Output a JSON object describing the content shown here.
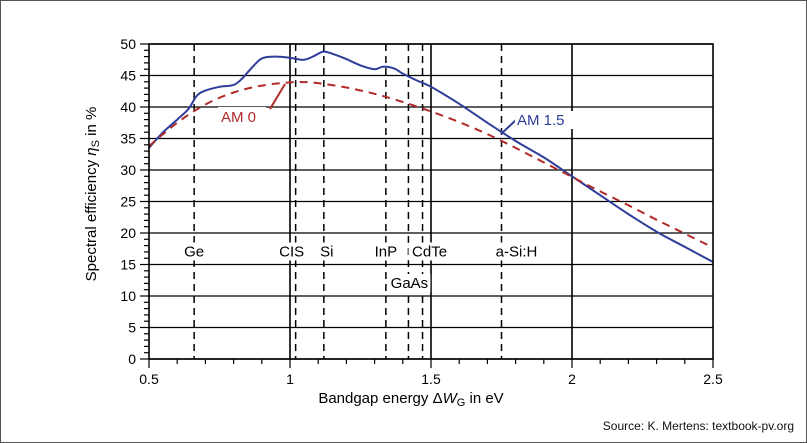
{
  "colors": {
    "am15": "#2f3d9a",
    "am0": "#b22a2a",
    "axis": "#000000"
  },
  "source_text": "Source: K. Mertens: textbook-pv.org",
  "chart_data": {
    "type": "line",
    "title": "",
    "xlabel_prefix": "Bandgap energy Δ",
    "xlabel_var": "W",
    "xlabel_sub": "G",
    "xlabel_suffix": " in eV",
    "ylabel_prefix": "Spectral efficiency ",
    "ylabel_var": "η",
    "ylabel_sub": "S",
    "ylabel_suffix": " in %",
    "xlim": [
      0.5,
      2.5
    ],
    "ylim": [
      0,
      50
    ],
    "xticks": [
      0.5,
      1,
      1.5,
      2,
      2.5
    ],
    "yticks": [
      0,
      5,
      10,
      15,
      20,
      25,
      30,
      35,
      40,
      45,
      50
    ],
    "grid": "horizontal lines at every y tick, vertical lines at x = 1, 1.5, 2",
    "series": [
      {
        "name": "AM 1.5",
        "style": "solid",
        "color": "#2f3d9a",
        "x": [
          0.5,
          0.55,
          0.6,
          0.64,
          0.67,
          0.7,
          0.75,
          0.8,
          0.83,
          0.86,
          0.9,
          0.95,
          1.0,
          1.04,
          1.06,
          1.09,
          1.12,
          1.16,
          1.2,
          1.25,
          1.3,
          1.33,
          1.37,
          1.4,
          1.45,
          1.5,
          1.6,
          1.7,
          1.8,
          1.9,
          2.0,
          2.1,
          2.2,
          2.3,
          2.4,
          2.5
        ],
        "y": [
          33.5,
          36.0,
          38.0,
          39.7,
          41.8,
          42.6,
          43.2,
          43.5,
          44.5,
          46.0,
          47.7,
          48.0,
          47.8,
          47.5,
          47.6,
          48.2,
          48.8,
          48.3,
          47.6,
          46.6,
          46.0,
          46.4,
          46.1,
          45.3,
          44.2,
          43.2,
          40.5,
          37.5,
          34.6,
          32.0,
          29.0,
          26.0,
          23.0,
          20.2,
          17.8,
          15.4
        ]
      },
      {
        "name": "AM 0",
        "style": "dashed",
        "color": "#b22a2a",
        "x": [
          0.5,
          0.6,
          0.7,
          0.8,
          0.9,
          1.0,
          1.05,
          1.1,
          1.2,
          1.3,
          1.4,
          1.5,
          1.6,
          1.7,
          1.8,
          1.9,
          2.0,
          2.1,
          2.2,
          2.3,
          2.4,
          2.5
        ],
        "y": [
          33.8,
          37.5,
          40.4,
          42.3,
          43.4,
          43.9,
          43.95,
          43.8,
          43.1,
          42.1,
          40.8,
          39.3,
          37.6,
          35.7,
          33.5,
          31.2,
          28.9,
          26.6,
          24.4,
          22.1,
          19.9,
          17.7
        ]
      }
    ],
    "materials": [
      {
        "name": "Ge",
        "bandgap": 0.66,
        "line": "dashed",
        "label_row": "upper"
      },
      {
        "name": "CIS",
        "bandgap": 1.02,
        "line": "dashed",
        "label_row": "upper"
      },
      {
        "name": "Si",
        "bandgap": 1.12,
        "line": "dashed",
        "label_row": "upper"
      },
      {
        "name": "InP",
        "bandgap": 1.34,
        "line": "dashed",
        "label_row": "upper"
      },
      {
        "name": "GaAs",
        "bandgap": 1.42,
        "line": "dashed",
        "label_row": "lower"
      },
      {
        "name": "CdTe",
        "bandgap": 1.47,
        "line": "dashed",
        "label_row": "upper"
      },
      {
        "name": "a-Si:H",
        "bandgap": 1.75,
        "line": "dashed",
        "label_row": "upper"
      }
    ],
    "annotations": [
      {
        "text": "AM 0",
        "series": "AM 0"
      },
      {
        "text": "AM 1.5",
        "series": "AM 1.5"
      }
    ]
  }
}
